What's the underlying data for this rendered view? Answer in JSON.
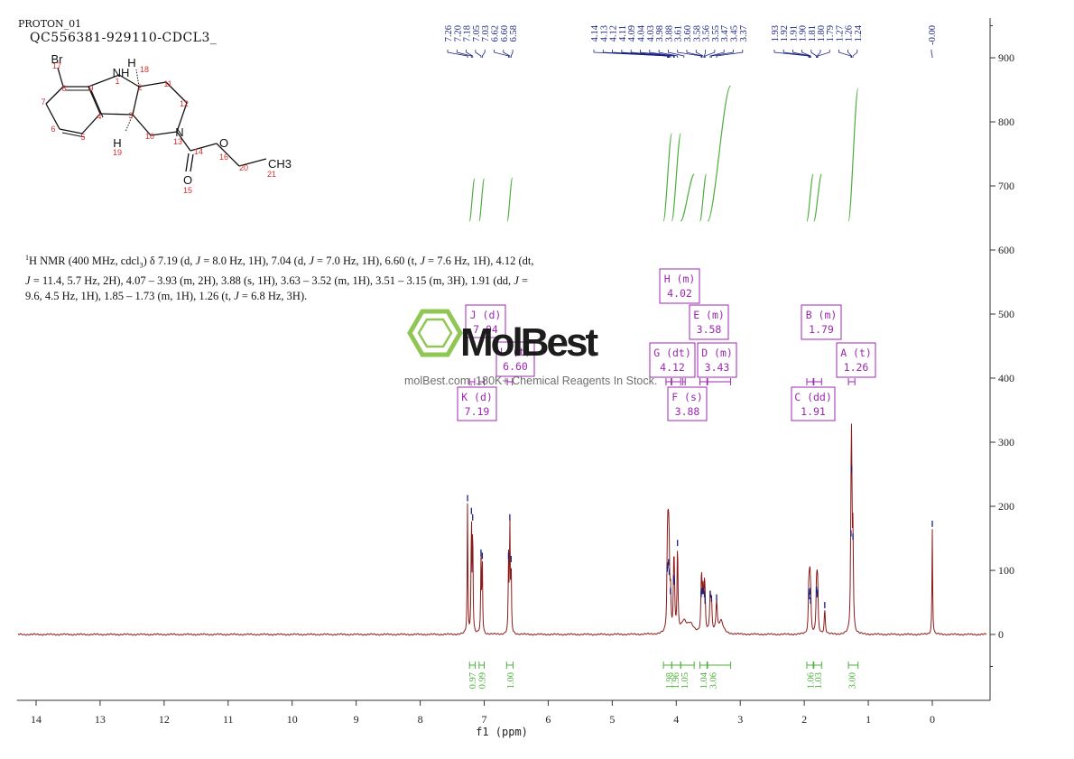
{
  "header": {
    "code": "PROTON_01",
    "title": "QC556381-929110-CDCL3_"
  },
  "description_parts": [
    {
      "t": "1",
      "sup": true
    },
    {
      "t": "H NMR (400 MHz, cdcl"
    },
    {
      "t": "3",
      "sub": true
    },
    {
      "t": ") δ 7.19 (d, "
    },
    {
      "t": "J",
      "it": true
    },
    {
      "t": " = 8.0 Hz, 1H), 7.04 (d, "
    },
    {
      "t": "J",
      "it": true
    },
    {
      "t": " = 7.0 Hz, 1H), 6.60 (t, "
    },
    {
      "t": "J",
      "it": true
    },
    {
      "t": " = 7.6 Hz, 1H), 4.12 (dt, "
    },
    {
      "t": "J",
      "it": true
    },
    {
      "t": " = 11.4, 5.7 Hz, 2H), 4.07 – 3.93 (m, 2H), 3.88 (s, 1H), 3.63 – 3.52 (m, 1H), 3.51 – 3.15 (m, 3H), 1.91 (dd, "
    },
    {
      "t": "J",
      "it": true
    },
    {
      "t": " = 9.6, 4.5 Hz, 1H), 1.85 – 1.73 (m, 1H), 1.26 (t, "
    },
    {
      "t": "J",
      "it": true
    },
    {
      "t": " = 6.8 Hz, 3H)."
    }
  ],
  "molecule": {
    "atoms": [
      {
        "label": "Br",
        "num": "17"
      },
      {
        "label": "",
        "num": "8"
      },
      {
        "label": "",
        "num": "7"
      },
      {
        "label": "",
        "num": "6"
      },
      {
        "label": "",
        "num": "5"
      },
      {
        "label": "",
        "num": "4"
      },
      {
        "label": "",
        "num": "9"
      },
      {
        "label": "NH",
        "num": "1"
      },
      {
        "label": "",
        "num": "2"
      },
      {
        "label": "H",
        "num": "18"
      },
      {
        "label": "",
        "num": "3"
      },
      {
        "label": "H",
        "num": "19"
      },
      {
        "label": "",
        "num": "11"
      },
      {
        "label": "",
        "num": "12"
      },
      {
        "label": "N",
        "num": "13"
      },
      {
        "label": "",
        "num": "10"
      },
      {
        "label": "",
        "num": "14"
      },
      {
        "label": "O",
        "num": "15"
      },
      {
        "label": "O",
        "num": "16"
      },
      {
        "label": "",
        "num": "20"
      },
      {
        "label": "CH3",
        "num": "21"
      }
    ]
  },
  "watermark": {
    "brand": "MolBest",
    "tagline": "molBest.com, 180K+ Chemical Reagents In Stock."
  },
  "colors": {
    "spectrum": "#8b1a1a",
    "integral": "#4cae3c",
    "peak_label": "#1a237e",
    "multiplet_box": "#9c27b0",
    "atom_number": "#d32f2f",
    "logo": "#8bc34a"
  },
  "chart_data": {
    "type": "line",
    "title": "",
    "xlabel": "f1 (ppm)",
    "ylabel": "",
    "xlim": [
      14.3,
      -0.85
    ],
    "ylim": [
      -100,
      960
    ],
    "x_ticks": [
      14,
      13,
      12,
      11,
      10,
      9,
      8,
      7,
      6,
      5,
      4,
      3,
      2,
      1,
      0
    ],
    "y_ticks": [
      900,
      800,
      700,
      600,
      500,
      400,
      300,
      200,
      100,
      0
    ],
    "peak_labels": [
      {
        "text": "7.26",
        "ppm": 7.26
      },
      {
        "text": "7.20",
        "ppm": 7.2
      },
      {
        "text": "7.18",
        "ppm": 7.18
      },
      {
        "text": "7.05",
        "ppm": 7.05
      },
      {
        "text": "7.03",
        "ppm": 7.03
      },
      {
        "text": "6.62",
        "ppm": 6.62
      },
      {
        "text": "6.60",
        "ppm": 6.6
      },
      {
        "text": "6.58",
        "ppm": 6.58
      },
      {
        "text": "4.14",
        "ppm": 4.14
      },
      {
        "text": "4.13",
        "ppm": 4.13
      },
      {
        "text": "4.12",
        "ppm": 4.12
      },
      {
        "text": "4.11",
        "ppm": 4.11
      },
      {
        "text": "4.09",
        "ppm": 4.09
      },
      {
        "text": "4.04",
        "ppm": 4.04
      },
      {
        "text": "4.03",
        "ppm": 4.03
      },
      {
        "text": "3.98",
        "ppm": 3.98
      },
      {
        "text": "3.88",
        "ppm": 3.88
      },
      {
        "text": "3.61",
        "ppm": 3.61
      },
      {
        "text": "3.60",
        "ppm": 3.6
      },
      {
        "text": "3.58",
        "ppm": 3.58
      },
      {
        "text": "3.56",
        "ppm": 3.56
      },
      {
        "text": "3.55",
        "ppm": 3.55
      },
      {
        "text": "3.47",
        "ppm": 3.47
      },
      {
        "text": "3.45",
        "ppm": 3.45
      },
      {
        "text": "3.37",
        "ppm": 3.37
      },
      {
        "text": "1.93",
        "ppm": 1.93
      },
      {
        "text": "1.92",
        "ppm": 1.92
      },
      {
        "text": "1.91",
        "ppm": 1.91
      },
      {
        "text": "1.90",
        "ppm": 1.9
      },
      {
        "text": "1.81",
        "ppm": 1.81
      },
      {
        "text": "1.80",
        "ppm": 1.8
      },
      {
        "text": "1.79",
        "ppm": 1.79
      },
      {
        "text": "1.27",
        "ppm": 1.27
      },
      {
        "text": "1.26",
        "ppm": 1.26
      },
      {
        "text": "1.24",
        "ppm": 1.24
      },
      {
        "text": "-0.00",
        "ppm": 0.0
      }
    ],
    "multiplets": [
      {
        "name": "J (d)",
        "shift": "7.04",
        "ppm": 7.04,
        "range": [
          7.08,
          7.0
        ]
      },
      {
        "name": "L (t)",
        "shift": "6.60",
        "ppm": 6.6,
        "range": [
          6.64,
          6.56
        ]
      },
      {
        "name": "K (d)",
        "shift": "7.19",
        "ppm": 7.19,
        "range": [
          7.23,
          7.15
        ]
      },
      {
        "name": "H (m)",
        "shift": "4.02",
        "ppm": 4.02,
        "range": [
          4.07,
          3.93
        ]
      },
      {
        "name": "E (m)",
        "shift": "3.58",
        "ppm": 3.58,
        "range": [
          3.63,
          3.52
        ]
      },
      {
        "name": "G (dt)",
        "shift": "4.12",
        "ppm": 4.12,
        "range": [
          4.16,
          4.08
        ]
      },
      {
        "name": "D (m)",
        "shift": "3.43",
        "ppm": 3.43,
        "range": [
          3.51,
          3.15
        ]
      },
      {
        "name": "F (s)",
        "shift": "3.88",
        "ppm": 3.88,
        "range": [
          3.9,
          3.86
        ]
      },
      {
        "name": "B (m)",
        "shift": "1.79",
        "ppm": 1.79,
        "range": [
          1.85,
          1.73
        ]
      },
      {
        "name": "A (t)",
        "shift": "1.26",
        "ppm": 1.26,
        "range": [
          1.31,
          1.21
        ]
      },
      {
        "name": "C (dd)",
        "shift": "1.91",
        "ppm": 1.91,
        "range": [
          1.96,
          1.86
        ]
      }
    ],
    "integrals": [
      {
        "value": "0.97",
        "ppm": 7.19,
        "range": [
          7.23,
          7.14
        ]
      },
      {
        "value": "0.99",
        "ppm": 7.04,
        "range": [
          7.08,
          7.0
        ]
      },
      {
        "value": "1.00",
        "ppm": 6.6,
        "range": [
          6.65,
          6.55
        ]
      },
      {
        "value": "1.98",
        "ppm": 4.12,
        "range": [
          4.2,
          4.07
        ]
      },
      {
        "value": "1.96",
        "ppm": 4.02,
        "range": [
          4.07,
          3.93
        ]
      },
      {
        "value": "1.05",
        "ppm": 3.88,
        "range": [
          3.93,
          3.72
        ]
      },
      {
        "value": "1.04",
        "ppm": 3.58,
        "range": [
          3.63,
          3.52
        ]
      },
      {
        "value": "3.06",
        "ppm": 3.43,
        "range": [
          3.51,
          3.15
        ]
      },
      {
        "value": "1.06",
        "ppm": 1.91,
        "range": [
          1.96,
          1.86
        ]
      },
      {
        "value": "1.03",
        "ppm": 1.79,
        "range": [
          1.85,
          1.73
        ]
      },
      {
        "value": "3.00",
        "ppm": 1.26,
        "range": [
          1.31,
          1.16
        ]
      }
    ],
    "peaks": [
      {
        "ppm": 7.26,
        "height": 205,
        "w": 0.006
      },
      {
        "ppm": 7.2,
        "height": 185,
        "w": 0.006
      },
      {
        "ppm": 7.18,
        "height": 175,
        "w": 0.006
      },
      {
        "ppm": 7.05,
        "height": 120,
        "w": 0.006
      },
      {
        "ppm": 7.03,
        "height": 115,
        "w": 0.006
      },
      {
        "ppm": 6.62,
        "height": 115,
        "w": 0.006
      },
      {
        "ppm": 6.6,
        "height": 175,
        "w": 0.006
      },
      {
        "ppm": 6.58,
        "height": 110,
        "w": 0.006
      },
      {
        "ppm": 4.14,
        "height": 95,
        "w": 0.008
      },
      {
        "ppm": 4.13,
        "height": 100,
        "w": 0.008
      },
      {
        "ppm": 4.12,
        "height": 105,
        "w": 0.008
      },
      {
        "ppm": 4.11,
        "height": 90,
        "w": 0.008
      },
      {
        "ppm": 4.09,
        "height": 60,
        "w": 0.008
      },
      {
        "ppm": 4.04,
        "height": 80,
        "w": 0.008
      },
      {
        "ppm": 4.03,
        "height": 75,
        "w": 0.008
      },
      {
        "ppm": 3.98,
        "height": 135,
        "w": 0.008
      },
      {
        "ppm": 3.88,
        "height": 18,
        "w": 0.05
      },
      {
        "ppm": 3.78,
        "height": 14,
        "w": 0.06
      },
      {
        "ppm": 3.61,
        "height": 55,
        "w": 0.008
      },
      {
        "ppm": 3.6,
        "height": 60,
        "w": 0.008
      },
      {
        "ppm": 3.58,
        "height": 60,
        "w": 0.008
      },
      {
        "ppm": 3.56,
        "height": 55,
        "w": 0.008
      },
      {
        "ppm": 3.55,
        "height": 45,
        "w": 0.008
      },
      {
        "ppm": 3.47,
        "height": 55,
        "w": 0.01
      },
      {
        "ppm": 3.45,
        "height": 48,
        "w": 0.01
      },
      {
        "ppm": 3.37,
        "height": 50,
        "w": 0.012
      },
      {
        "ppm": 3.3,
        "height": 20,
        "w": 0.04
      },
      {
        "ppm": 1.93,
        "height": 58,
        "w": 0.008
      },
      {
        "ppm": 1.92,
        "height": 52,
        "w": 0.008
      },
      {
        "ppm": 1.91,
        "height": 60,
        "w": 0.008
      },
      {
        "ppm": 1.9,
        "height": 45,
        "w": 0.008
      },
      {
        "ppm": 1.81,
        "height": 62,
        "w": 0.008
      },
      {
        "ppm": 1.8,
        "height": 55,
        "w": 0.008
      },
      {
        "ppm": 1.79,
        "height": 58,
        "w": 0.008
      },
      {
        "ppm": 1.68,
        "height": 38,
        "w": 0.01
      },
      {
        "ppm": 1.27,
        "height": 150,
        "w": 0.008
      },
      {
        "ppm": 1.26,
        "height": 250,
        "w": 0.008
      },
      {
        "ppm": 1.24,
        "height": 145,
        "w": 0.008
      },
      {
        "ppm": 0.0,
        "height": 165,
        "w": 0.006
      }
    ]
  }
}
